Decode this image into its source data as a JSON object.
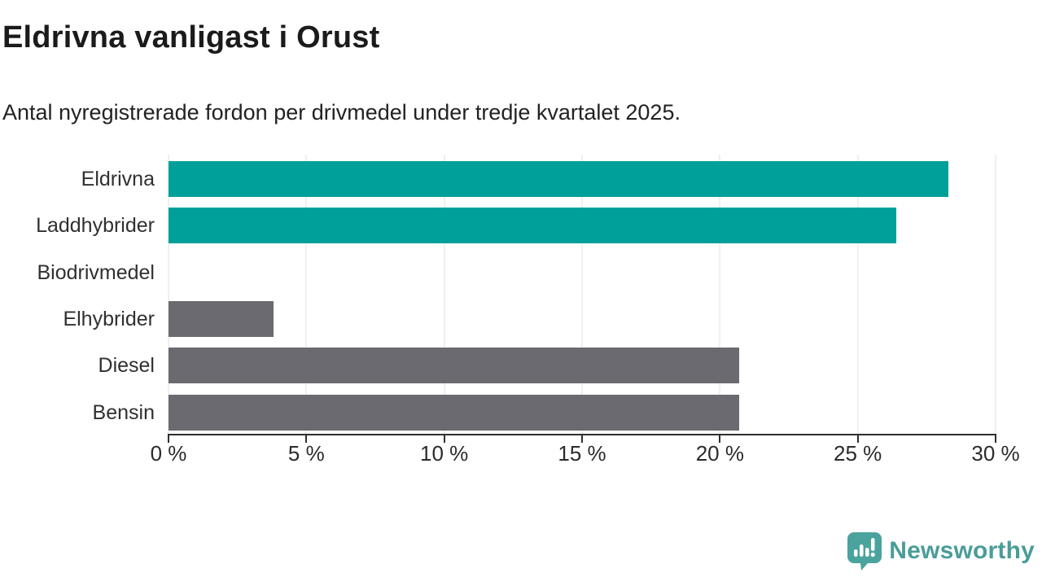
{
  "header": {
    "title": "Eldrivna vanligast i Orust",
    "subtitle": "Antal nyregistrerade fordon per drivmedel under tredje kvartalet 2025."
  },
  "chart_data": {
    "type": "bar",
    "orientation": "horizontal",
    "title": "Eldrivna vanligast i Orust",
    "subtitle": "Antal nyregistrerade fordon per drivmedel under tredje kvartalet 2025.",
    "categories": [
      "Eldrivna",
      "Laddhybrider",
      "Biodrivmedel",
      "Elhybrider",
      "Diesel",
      "Bensin"
    ],
    "values": [
      28.3,
      26.4,
      0,
      3.8,
      20.7,
      20.7
    ],
    "unit": "%",
    "xlabel": "",
    "ylabel": "",
    "xlim": [
      0,
      30
    ],
    "x_tick_values": [
      0,
      5,
      10,
      15,
      20,
      25,
      30
    ],
    "x_tick_labels": [
      "0 %",
      "5 %",
      "10 %",
      "15 %",
      "20 %",
      "25 %",
      "30 %"
    ],
    "grid": true,
    "legend_position": "none",
    "bar_colors": [
      "#00a09a",
      "#00a09a",
      "#6a6a70",
      "#6a6a70",
      "#6a6a70",
      "#6a6a70"
    ],
    "colors": {
      "highlight_teal": "#00a09a",
      "neutral_gray": "#6a6a70",
      "gridline": "#e2e2e2",
      "axis": "#2f2f2f"
    }
  },
  "branding": {
    "logo_text": "Newsworthy",
    "logo_color": "#4a9d98",
    "logo_icon": "bar-chart-speech-bubble-icon"
  }
}
